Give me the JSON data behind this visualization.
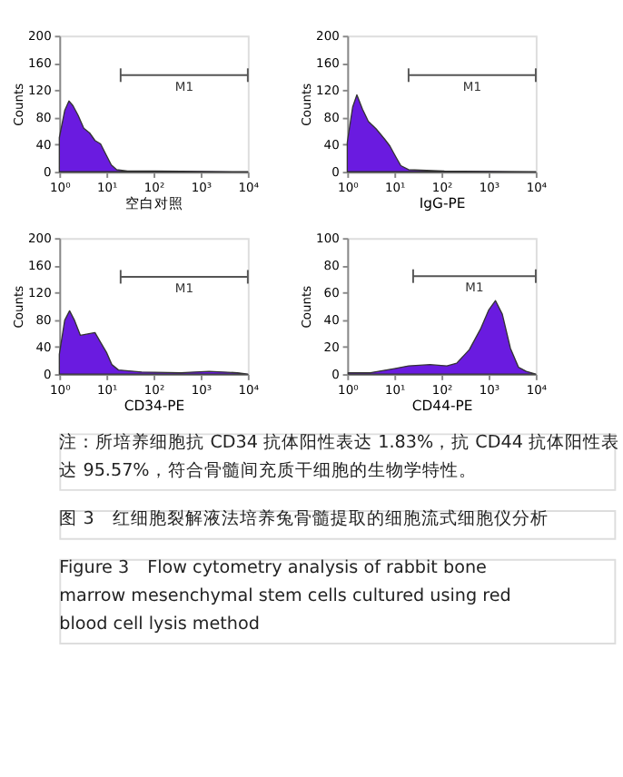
{
  "chart_data": [
    {
      "type": "area",
      "xlabel": "空白对照",
      "ylabel": "Counts",
      "log": "x",
      "grid": false,
      "xlim": [
        1,
        10000
      ],
      "ylim": [
        0,
        200
      ],
      "xticks": [
        {
          "value": 1,
          "label": "10⁰"
        },
        {
          "value": 10,
          "label": "10¹"
        },
        {
          "value": 100,
          "label": "10²"
        },
        {
          "value": 1000,
          "label": "10³"
        },
        {
          "value": 10000,
          "label": "10⁴"
        }
      ],
      "yticks": [
        0,
        40,
        80,
        120,
        160,
        200
      ],
      "x": [
        1.0,
        1.3,
        1.6,
        1.95,
        2.5,
        3.3,
        4.4,
        5.7,
        7.5,
        10,
        12.7,
        16.5,
        28,
        107,
        10000
      ],
      "series": [
        {
          "color": "#6a1be0",
          "values": [
            50,
            90,
            104,
            97,
            83,
            64,
            57,
            46,
            41,
            24,
            10,
            3,
            1,
            1,
            0
          ]
        },
        {
          "type": "line",
          "color": "#555555",
          "x": [
            20,
            10000
          ],
          "values": [
            142,
            142
          ],
          "errors": [
            10,
            10
          ]
        }
      ],
      "annotations": [
        "M1"
      ]
    },
    {
      "type": "area",
      "xlabel": "IgG-PE",
      "ylabel": "Counts",
      "log": "x",
      "grid": false,
      "xlim": [
        1,
        10000
      ],
      "ylim": [
        0,
        200
      ],
      "xticks": [
        {
          "value": 1,
          "label": "10⁰"
        },
        {
          "value": 10,
          "label": "10¹"
        },
        {
          "value": 100,
          "label": "10²"
        },
        {
          "value": 1000,
          "label": "10³"
        },
        {
          "value": 10000,
          "label": "10⁴"
        }
      ],
      "yticks": [
        0,
        40,
        80,
        120,
        160,
        200
      ],
      "x": [
        1.0,
        1.3,
        1.6,
        2.1,
        2.8,
        4.1,
        6.2,
        8,
        10.5,
        13.7,
        20,
        115,
        10000
      ],
      "series": [
        {
          "color": "#6a1be0",
          "values": [
            43,
            95,
            113,
            92,
            74,
            63,
            48,
            38,
            23,
            9,
            3,
            1,
            0
          ]
        },
        {
          "type": "line",
          "color": "#555555",
          "x": [
            20,
            10000
          ],
          "values": [
            142,
            142
          ],
          "errors": [
            10,
            10
          ]
        }
      ],
      "annotations": [
        "M1"
      ]
    },
    {
      "type": "area",
      "xlabel": "CD34-PE",
      "ylabel": "Counts",
      "log": "x",
      "grid": false,
      "xlim": [
        1,
        10000
      ],
      "ylim": [
        0,
        200
      ],
      "xticks": [
        {
          "value": 1,
          "label": "10⁰"
        },
        {
          "value": 10,
          "label": "10¹"
        },
        {
          "value": 100,
          "label": "10²"
        },
        {
          "value": 1000,
          "label": "10³"
        },
        {
          "value": 10000,
          "label": "10⁴"
        }
      ],
      "yticks": [
        0,
        40,
        80,
        120,
        160,
        200
      ],
      "x": [
        1.0,
        1.3,
        1.65,
        2.1,
        2.8,
        4.0,
        5.7,
        7.6,
        10,
        13,
        18,
        56,
        380,
        1500,
        6000,
        10000
      ],
      "series": [
        {
          "color": "#6a1be0",
          "values": [
            29,
            79,
            93,
            79,
            57,
            59,
            61,
            46,
            32,
            14,
            6,
            3,
            2,
            4,
            2,
            0
          ]
        },
        {
          "type": "line",
          "color": "#555555",
          "x": [
            20,
            10000
          ],
          "values": [
            143,
            143
          ],
          "errors": [
            10,
            10
          ]
        }
      ],
      "annotations": [
        "M1"
      ]
    },
    {
      "type": "area",
      "xlabel": "CD44-PE",
      "ylabel": "Counts",
      "log": "x",
      "grid": false,
      "xlim": [
        1,
        10000
      ],
      "ylim": [
        0,
        100
      ],
      "xticks": [
        {
          "value": 1,
          "label": "10⁰"
        },
        {
          "value": 10,
          "label": "10¹"
        },
        {
          "value": 100,
          "label": "10²"
        },
        {
          "value": 1000,
          "label": "10³"
        },
        {
          "value": 10000,
          "label": "10⁴"
        }
      ],
      "yticks": [
        0,
        20,
        40,
        60,
        80,
        100
      ],
      "x": [
        1.05,
        3.1,
        10,
        20,
        57,
        130,
        210,
        390,
        670,
        1000,
        1400,
        1950,
        2900,
        4300,
        6300,
        10000
      ],
      "series": [
        {
          "color": "#6a1be0",
          "values": [
            1,
            1,
            4,
            6,
            7,
            6,
            8,
            18,
            33,
            47,
            54,
            44,
            19,
            5,
            2,
            0
          ]
        },
        {
          "type": "line",
          "color": "#555555",
          "x": [
            25,
            10000
          ],
          "values": [
            72,
            72
          ],
          "errors": [
            5,
            5
          ]
        }
      ],
      "annotations": [
        "M1",
        "注：所培养细胞抗 CD34 抗体阳性表达 1.83%，抗 CD44 抗体阳性表达 95.57%，符合骨髓间充质干细胞的生物学特性。",
        "图 3　红细胞裂解液法培养兔骨髓提取的细胞流式细胞仪分析",
        "Figure 3　Flow cytometry analysis of rabbit bone marrow mesenchymal stem cells cultured using red blood cell lysis method"
      ]
    }
  ]
}
